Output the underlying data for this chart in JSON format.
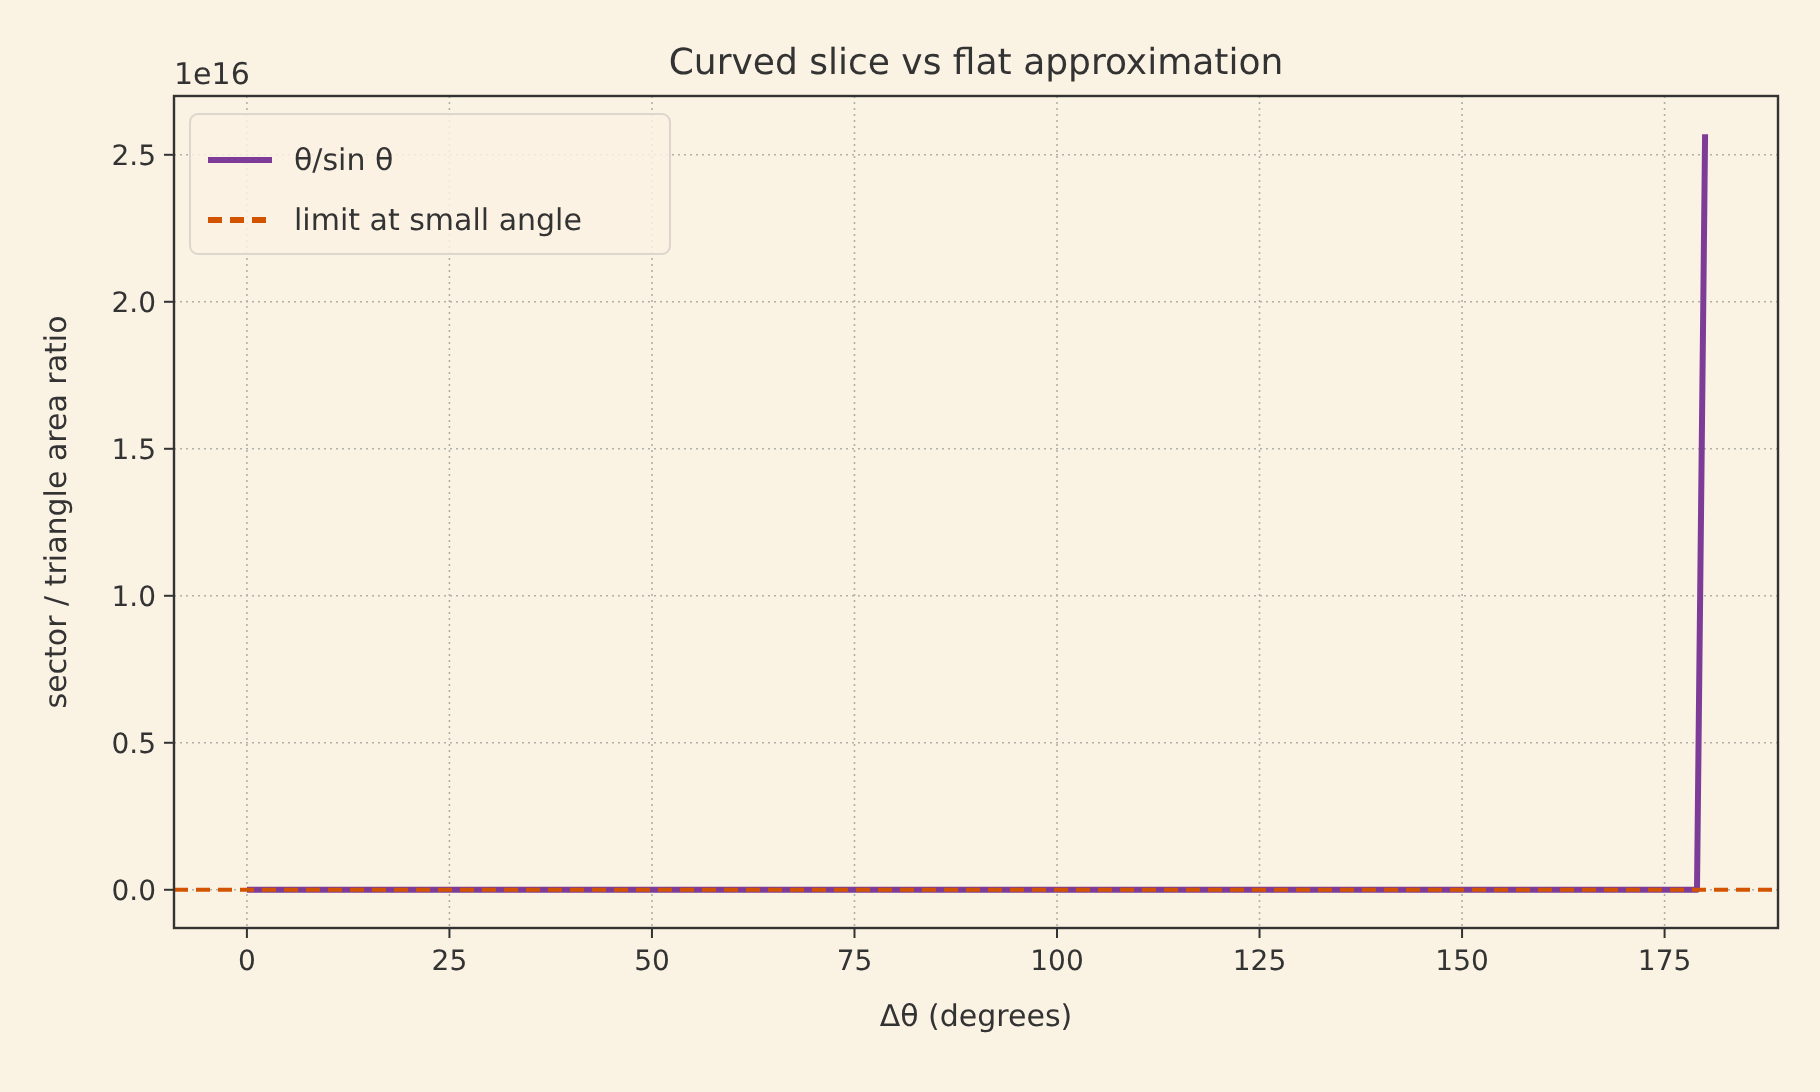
{
  "chart_data": {
    "type": "line",
    "title": "Curved slice vs flat approximation",
    "xlabel": "Δθ (degrees)",
    "ylabel": "sector / triangle area ratio",
    "annotations": [
      "1e16"
    ],
    "series": [
      {
        "name": "θ/sin θ",
        "color": "#7d3c98",
        "x": [
          0,
          179,
          180
        ],
        "values": [
          0,
          0,
          2.57
        ]
      }
    ],
    "ref_lines": [
      {
        "axis": "y",
        "value": 0,
        "label": "limit at small angle",
        "color": "#d35400",
        "line_style": "dashed"
      }
    ],
    "xlim": [
      -9,
      189
    ],
    "xticks": [
      0,
      25,
      50,
      75,
      100,
      125,
      150,
      175
    ],
    "ylim": [
      -0.13,
      2.7
    ],
    "yticks": [
      {
        "value": 0,
        "label": "0.0"
      },
      {
        "value": 0.5,
        "label": "0.5"
      },
      {
        "value": 1,
        "label": "1.0"
      },
      {
        "value": 1.5,
        "label": "1.5"
      },
      {
        "value": 2,
        "label": "2.0"
      },
      {
        "value": 2.5,
        "label": "2.5"
      }
    ],
    "grid": true,
    "legend": "top left",
    "line_style": "solid",
    "marker": "none"
  }
}
